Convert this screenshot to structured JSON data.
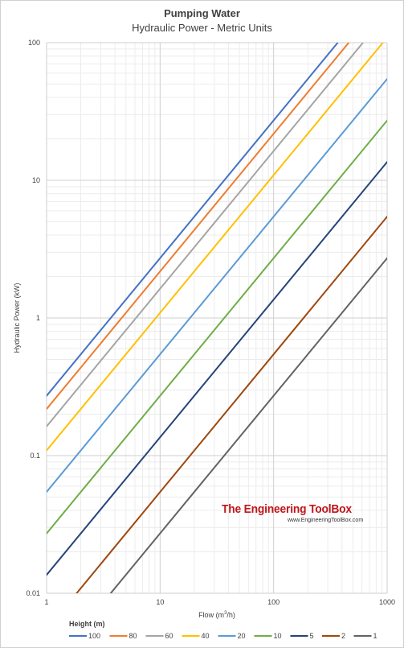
{
  "header": {
    "title": "Pumping Water",
    "subtitle": "Hydraulic Power - Metric Units"
  },
  "watermark": {
    "logo_text": "The Engineering ToolBox",
    "url": "www.EngineeringToolBox.com"
  },
  "chart_data": {
    "type": "line",
    "title": "Pumping Water",
    "subtitle": "Hydraulic Power - Metric Units",
    "xlabel_base": "Flow (m",
    "xlabel_sup": "3",
    "xlabel_tail": "/h)",
    "ylabel": "Hydraulic Power (kW)",
    "x_scale": "log",
    "y_scale": "log",
    "xlim": [
      1,
      1000
    ],
    "ylim": [
      0.01,
      100
    ],
    "x_ticks": [
      {
        "value": 1,
        "label": "1"
      },
      {
        "value": 10,
        "label": "10"
      },
      {
        "value": 100,
        "label": "100"
      },
      {
        "value": 1000,
        "label": "1000"
      }
    ],
    "y_ticks": [
      {
        "value": 0.01,
        "label": "0.01"
      },
      {
        "value": 0.1,
        "label": "0.1"
      },
      {
        "value": 1,
        "label": "1"
      },
      {
        "value": 10,
        "label": "10"
      },
      {
        "value": 100,
        "label": "100"
      }
    ],
    "grid": "major and minor",
    "legend_title": "Height (m)",
    "legend_position": "bottom",
    "series": [
      {
        "name": "100",
        "color": "#4472c4",
        "points": [
          [
            1,
            0.272
          ],
          [
            367,
            100
          ]
        ]
      },
      {
        "name": "80",
        "color": "#ed7d31",
        "points": [
          [
            1,
            0.218
          ],
          [
            459,
            100
          ]
        ]
      },
      {
        "name": "60",
        "color": "#a5a5a5",
        "points": [
          [
            1,
            0.163
          ],
          [
            612,
            100
          ]
        ]
      },
      {
        "name": "40",
        "color": "#ffc000",
        "points": [
          [
            1,
            0.109
          ],
          [
            917,
            100
          ]
        ],
        "end": [
          1000,
          109
        ]
      },
      {
        "name": "20",
        "color": "#5b9bd5",
        "points": [
          [
            1,
            0.0545
          ],
          [
            1000,
            54.5
          ]
        ]
      },
      {
        "name": "10",
        "color": "#70ad47",
        "points": [
          [
            1,
            0.0272
          ],
          [
            1000,
            27.2
          ]
        ]
      },
      {
        "name": "5",
        "color": "#264478",
        "points": [
          [
            1,
            0.0136
          ],
          [
            1000,
            13.6
          ]
        ]
      },
      {
        "name": "2",
        "color": "#9e480e",
        "points": [
          [
            1.84,
            0.01
          ],
          [
            1000,
            5.45
          ]
        ]
      },
      {
        "name": "1",
        "color": "#636363",
        "points": [
          [
            3.67,
            0.01
          ],
          [
            1000,
            2.72
          ]
        ]
      }
    ]
  }
}
